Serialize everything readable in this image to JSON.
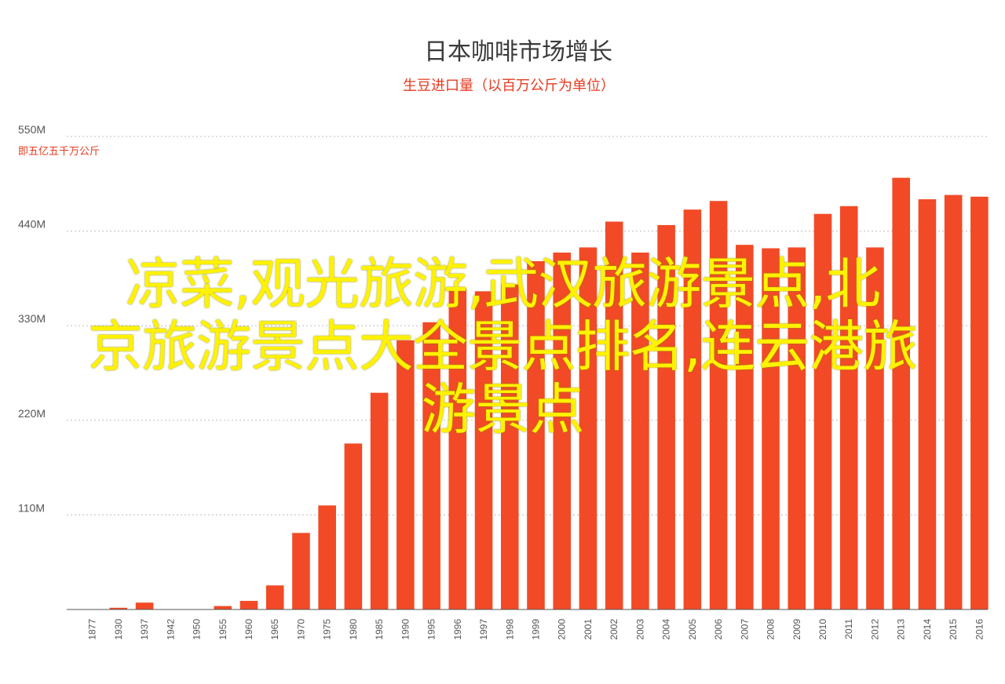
{
  "chart_data": {
    "type": "bar",
    "title": "日本咖啡市场增长",
    "subtitle": "生豆进口量（以百万公斤为单位）",
    "ylabel": "",
    "xlabel": "",
    "y_unit_note": "即五亿五千万公斤",
    "ylim": [
      0,
      550
    ],
    "yticks": [
      {
        "value": 110,
        "label": "110M"
      },
      {
        "value": 220,
        "label": "220M"
      },
      {
        "value": 330,
        "label": "330M"
      },
      {
        "value": 440,
        "label": "440M"
      },
      {
        "value": 550,
        "label": "550M"
      }
    ],
    "categories": [
      "1877",
      "1930",
      "1937",
      "1942",
      "1950",
      "1955",
      "1960",
      "1965",
      "1970",
      "1975",
      "1980",
      "1985",
      "1990",
      "1995",
      "1996",
      "1997",
      "1998",
      "1999",
      "2000",
      "2001",
      "2002",
      "2003",
      "2004",
      "2005",
      "2006",
      "2007",
      "2008",
      "2009",
      "2010",
      "2011",
      "2012",
      "2013",
      "2014",
      "2015",
      "2016"
    ],
    "values": [
      0,
      2,
      8,
      0,
      0,
      4,
      10,
      28,
      89,
      121,
      193,
      252,
      313,
      334,
      373,
      370,
      378,
      405,
      415,
      421,
      451,
      415,
      447,
      465,
      475,
      424,
      420,
      421,
      460,
      469,
      421,
      502,
      477,
      482,
      480
    ],
    "bar_color": "#f24a26",
    "grid": true
  },
  "overlay": {
    "line1": "凉菜,观光旅游,武汉旅游景点,北",
    "line2": "京旅游景点大全景点排名,连云港旅",
    "line3": "游景点",
    "color": "#fff200"
  }
}
